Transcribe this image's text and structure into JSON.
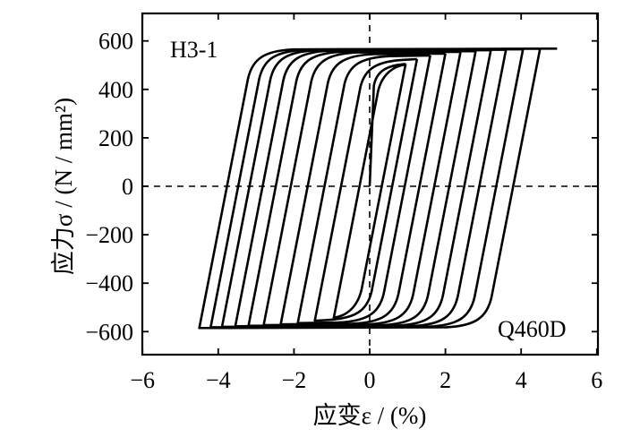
{
  "chart_data": {
    "type": "line",
    "title": "",
    "xlabel": "应变ε / (%)",
    "ylabel": "应力σ / (N / mm²)",
    "xlim": [
      -6,
      6
    ],
    "ylim": [
      -700,
      680
    ],
    "xticks": [
      -6,
      -4,
      -2,
      0,
      2,
      4,
      6
    ],
    "yticks": [
      -600,
      -400,
      -200,
      0,
      200,
      400,
      600
    ],
    "xtick_labels": [
      "−6",
      "−4",
      "−2",
      "0",
      "2",
      "4",
      "6"
    ],
    "ytick_labels": [
      "−600",
      "−400",
      "−200",
      "0",
      "200",
      "400",
      "600"
    ],
    "zero_reference_lines": true,
    "annotations": {
      "specimen": "H3-1",
      "material": "Q460D"
    },
    "hysteresis_loops": [
      {
        "strain_max": 0.95,
        "strain_min": -0.95,
        "stress_max": 505,
        "stress_min": -545
      },
      {
        "strain_max": 1.25,
        "strain_min": -1.45,
        "stress_max": 525,
        "stress_min": -555
      },
      {
        "strain_max": 1.6,
        "strain_min": -1.9,
        "stress_max": 540,
        "stress_min": -565
      },
      {
        "strain_max": 2.0,
        "strain_min": -2.35,
        "stress_max": 548,
        "stress_min": -570
      },
      {
        "strain_max": 2.4,
        "strain_min": -2.8,
        "stress_max": 555,
        "stress_min": -573
      },
      {
        "strain_max": 2.8,
        "strain_min": -3.2,
        "stress_max": 558,
        "stress_min": -576
      },
      {
        "strain_max": 3.2,
        "strain_min": -3.55,
        "stress_max": 562,
        "stress_min": -578
      },
      {
        "strain_max": 3.6,
        "strain_min": -3.9,
        "stress_max": 564,
        "stress_min": -580
      },
      {
        "strain_max": 4.05,
        "strain_min": -4.2,
        "stress_max": 566,
        "stress_min": -582
      },
      {
        "strain_max": 4.5,
        "strain_min": -4.5,
        "stress_max": 568,
        "stress_min": -585
      }
    ],
    "final_excursion": {
      "strain": 4.95,
      "stress": 568
    }
  }
}
